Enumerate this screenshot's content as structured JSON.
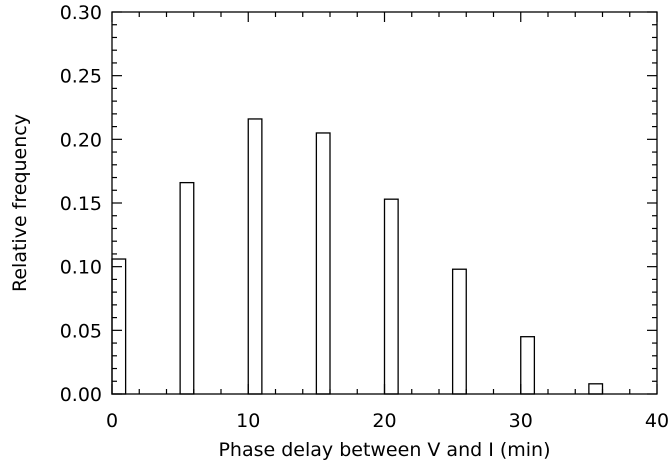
{
  "chart_data": {
    "type": "bar",
    "xlabel": "Phase delay between V and I (min)",
    "ylabel": "Relative frequency",
    "xlim": [
      0,
      40
    ],
    "ylim": [
      0,
      0.3
    ],
    "xticks": [
      "0",
      "10",
      "20",
      "30",
      "40"
    ],
    "yticks": [
      "0.00",
      "0.05",
      "0.10",
      "0.15",
      "0.20",
      "0.25",
      "0.30"
    ],
    "grid": false,
    "legend": "none",
    "bars": [
      {
        "x": 0,
        "value": 0.106
      },
      {
        "x": 5,
        "value": 0.166
      },
      {
        "x": 10,
        "value": 0.216
      },
      {
        "x": 15,
        "value": 0.205
      },
      {
        "x": 20,
        "value": 0.153
      },
      {
        "x": 25,
        "value": 0.098
      },
      {
        "x": 30,
        "value": 0.045
      },
      {
        "x": 35,
        "value": 0.008
      }
    ],
    "bar_width": 1
  }
}
